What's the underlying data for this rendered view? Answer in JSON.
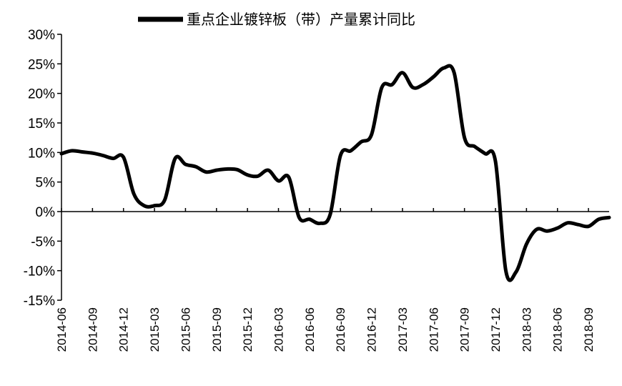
{
  "chart_data": {
    "type": "line",
    "title": "",
    "xlabel": "",
    "ylabel": "",
    "ylim": [
      -15,
      30
    ],
    "y_ticks": [
      30,
      25,
      20,
      15,
      10,
      5,
      0,
      -5,
      -10,
      -15
    ],
    "y_tick_labels": [
      "30%",
      "25%",
      "20%",
      "15%",
      "10%",
      "5%",
      "0%",
      "-5%",
      "-10%",
      "-15%"
    ],
    "y_unit": "%",
    "grid": false,
    "legend_position": "top-center",
    "x_tick_labels": [
      "2014-06",
      "2014-09",
      "2014-12",
      "2015-03",
      "2015-06",
      "2015-09",
      "2015-12",
      "2016-03",
      "2016-06",
      "2016-09",
      "2016-12",
      "2017-03",
      "2017-06",
      "2017-09",
      "2017-12",
      "2018-03",
      "2018-06",
      "2018-09"
    ],
    "x_range": [
      "2014-06",
      "2018-11"
    ],
    "series": [
      {
        "name": "重点企业镀锌板（带）产量累计同比",
        "color": "#000000",
        "points": [
          [
            "2014-06",
            9.8
          ],
          [
            "2014-07",
            10.3
          ],
          [
            "2014-08",
            10.1
          ],
          [
            "2014-09",
            9.9
          ],
          [
            "2014-10",
            9.5
          ],
          [
            "2014-11",
            9.0
          ],
          [
            "2014-12",
            9.2
          ],
          [
            "2015-01",
            3.0
          ],
          [
            "2015-02",
            1.0
          ],
          [
            "2015-03",
            1.0
          ],
          [
            "2015-04",
            2.0
          ],
          [
            "2015-05",
            9.0
          ],
          [
            "2015-06",
            8.0
          ],
          [
            "2015-07",
            7.6
          ],
          [
            "2015-08",
            6.7
          ],
          [
            "2015-09",
            7.0
          ],
          [
            "2015-10",
            7.2
          ],
          [
            "2015-11",
            7.1
          ],
          [
            "2015-12",
            6.2
          ],
          [
            "2016-01",
            6.0
          ],
          [
            "2016-02",
            7.0
          ],
          [
            "2016-03",
            5.2
          ],
          [
            "2016-04",
            5.8
          ],
          [
            "2016-05",
            -1.0
          ],
          [
            "2016-06",
            -1.3
          ],
          [
            "2016-07",
            -2.0
          ],
          [
            "2016-08",
            -0.5
          ],
          [
            "2016-09",
            9.5
          ],
          [
            "2016-10",
            10.3
          ],
          [
            "2016-11",
            11.8
          ],
          [
            "2016-12",
            13.0
          ],
          [
            "2017-01",
            21.0
          ],
          [
            "2017-02",
            21.5
          ],
          [
            "2017-03",
            23.5
          ],
          [
            "2017-04",
            21.0
          ],
          [
            "2017-05",
            21.5
          ],
          [
            "2017-06",
            22.8
          ],
          [
            "2017-07",
            24.3
          ],
          [
            "2017-08",
            23.5
          ],
          [
            "2017-09",
            12.5
          ],
          [
            "2017-10",
            11.0
          ],
          [
            "2017-11",
            9.8
          ],
          [
            "2017-12",
            8.5
          ],
          [
            "2018-01",
            -10.0
          ],
          [
            "2018-02",
            -10.2
          ],
          [
            "2018-03",
            -5.5
          ],
          [
            "2018-04",
            -3.0
          ],
          [
            "2018-05",
            -3.3
          ],
          [
            "2018-06",
            -2.8
          ],
          [
            "2018-07",
            -1.9
          ],
          [
            "2018-08",
            -2.2
          ],
          [
            "2018-09",
            -2.5
          ],
          [
            "2018-10",
            -1.3
          ],
          [
            "2018-11",
            -1.0
          ]
        ]
      }
    ]
  }
}
